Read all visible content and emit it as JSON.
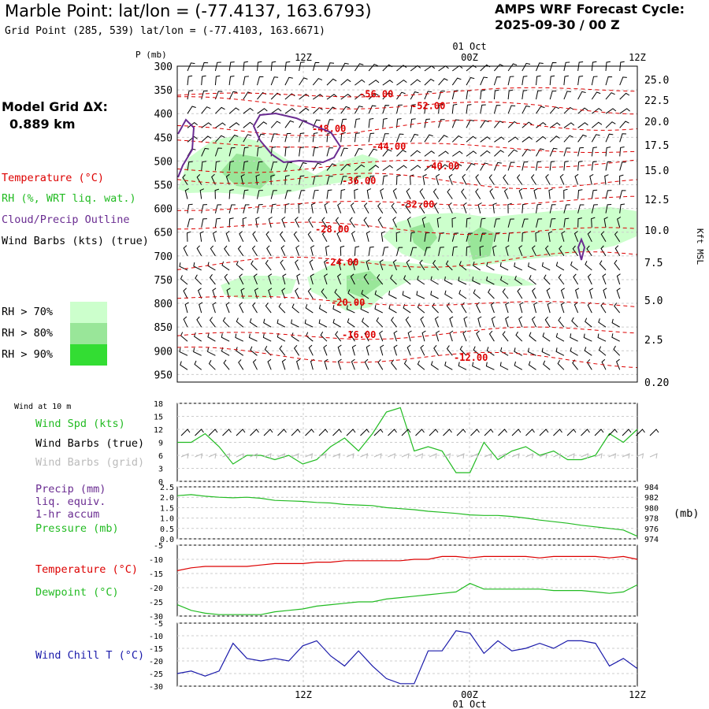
{
  "header": {
    "title": "Marble Point:  lat/lon = (-77.4137, 163.6793)",
    "subtitle": "Grid Point (285, 539) lat/lon = (-77.4103, 163.6671)",
    "cycle_label": "AMPS WRF Forecast Cycle:",
    "cycle_value": "2025-09-30 / 00  Z",
    "grid_label": "Model Grid ΔX:",
    "grid_value": "0.889 km"
  },
  "legend": {
    "temperature": "Temperature (°C)",
    "rh": "RH (%, WRT liq. wat.)",
    "cloud": "Cloud/Precip Outline",
    "wind": "Wind Barbs (kts) (true)",
    "rh70": "RH > 70%",
    "rh80": "RH > 80%",
    "rh90": "RH > 90%"
  },
  "colors": {
    "temperature": "#dd0000",
    "rh70": "#ccffcc",
    "rh80": "#99e699",
    "rh90": "#33dd33",
    "cloud": "#6a2c91",
    "wind_spd": "#22bb22",
    "pressure": "#22bb22",
    "precip": "#6a2c91",
    "dewpoint": "#22bb22",
    "windchill": "#1a1aaa",
    "grid_barbs": "#bbbbbb"
  },
  "chart_data": [
    {
      "type": "heatmap",
      "panel": "time-height cross section",
      "ylabel": "P (mb)",
      "y2label": "Kft MSL",
      "y_ticks": [
        "300",
        "350",
        "400",
        "450",
        "500",
        "550",
        "600",
        "650",
        "700",
        "750",
        "800",
        "850",
        "900",
        "950"
      ],
      "y2_ticks": [
        "25.0",
        "22.5",
        "20.0",
        "17.5",
        "15.0",
        "12.5",
        "10.0",
        "7.5",
        "5.0",
        "2.5",
        "0.20"
      ],
      "x_ticks_top": [
        "12Z",
        "00Z",
        "12Z"
      ],
      "date_label": "01 Oct",
      "isotherm_labels": [
        {
          "value": "-56.00",
          "p": 357
        },
        {
          "value": "-52.00",
          "p": 382
        },
        {
          "value": "-48.00",
          "p": 430
        },
        {
          "value": "-44.00",
          "p": 468
        },
        {
          "value": "-40.00",
          "p": 509
        },
        {
          "value": "-36.00",
          "p": 540
        },
        {
          "value": "-32.00",
          "p": 590
        },
        {
          "value": "-28.00",
          "p": 642
        },
        {
          "value": "-24.00",
          "p": 712
        },
        {
          "value": "-20.00",
          "p": 797
        },
        {
          "value": "-16.00",
          "p": 865
        },
        {
          "value": "-12.00",
          "p": 913
        }
      ]
    },
    {
      "type": "line",
      "panel": "wind",
      "title": "Wind at 10 m",
      "label_speed": "Wind Spd (kts)",
      "label_barbs_true": "Wind Barbs (true)",
      "label_barbs_grid": "Wind Barbs (grid)",
      "ylim": [
        0,
        18
      ],
      "y_ticks": [
        "0",
        "3",
        "6",
        "9",
        "12",
        "15",
        "18"
      ],
      "series": [
        {
          "name": "Wind Spd (kts)",
          "values": [
            9,
            9,
            11,
            8,
            4,
            6,
            6,
            5,
            6,
            4,
            5,
            8,
            10,
            7,
            11,
            16,
            17,
            7,
            8,
            7,
            2,
            2,
            9,
            5,
            7,
            8,
            6,
            7,
            5,
            5,
            6,
            11,
            9,
            12
          ]
        }
      ]
    },
    {
      "type": "line",
      "panel": "precip-pressure",
      "label_precip": "Precip (mm)",
      "label_liq": "liq. equiv.",
      "label_accum": "1-hr accum",
      "label_pressure": "Pressure (mb)",
      "y_ticks": [
        "0.0",
        "0.5",
        "1.0",
        "1.5",
        "2.0",
        "2.5"
      ],
      "y2_ticks": [
        "974",
        "976",
        "978",
        "980",
        "982",
        "984"
      ],
      "y2_unit": "(mb)",
      "series": [
        {
          "name": "Pressure (mb)",
          "values": [
            982.3,
            982.5,
            982.2,
            982.0,
            981.9,
            982.0,
            981.8,
            981.4,
            981.3,
            981.2,
            981.0,
            980.9,
            980.6,
            980.5,
            980.4,
            980.0,
            979.8,
            979.6,
            979.3,
            979.1,
            978.9,
            978.6,
            978.5,
            978.5,
            978.3,
            978.0,
            977.6,
            977.3,
            977.0,
            976.6,
            976.3,
            976.0,
            975.7,
            974.5
          ]
        }
      ]
    },
    {
      "type": "line",
      "panel": "temperature-dewpoint",
      "label_temperature": "Temperature (°C)",
      "label_dewpoint": "Dewpoint (°C)",
      "ylim": [
        -30,
        -5
      ],
      "y_ticks": [
        "-5",
        "-10",
        "-15",
        "-20",
        "-25",
        "-30"
      ],
      "series": [
        {
          "name": "Temperature (°C)",
          "values": [
            -14,
            -13,
            -12.5,
            -12.5,
            -12.5,
            -12.5,
            -12,
            -11.5,
            -11.5,
            -11.5,
            -11,
            -11,
            -10.5,
            -10.5,
            -10.5,
            -10.5,
            -10.5,
            -10,
            -10,
            -9,
            -9,
            -9.5,
            -9,
            -9,
            -9,
            -9,
            -9.5,
            -9,
            -9,
            -9,
            -9,
            -9.5,
            -9,
            -10
          ]
        },
        {
          "name": "Dewpoint (°C)",
          "values": [
            -26,
            -28,
            -29,
            -29.5,
            -29.5,
            -29.5,
            -29.5,
            -28.5,
            -28,
            -27.5,
            -26.5,
            -26,
            -25.5,
            -25,
            -25,
            -24,
            -23.5,
            -23,
            -22.5,
            -22,
            -21.5,
            -18.5,
            -20.5,
            -20.5,
            -20.5,
            -20.5,
            -20.5,
            -21,
            -21,
            -21,
            -21.5,
            -22,
            -21.5,
            -19
          ]
        }
      ]
    },
    {
      "type": "line",
      "panel": "wind-chill",
      "label": "Wind Chill T (°C)",
      "ylim": [
        -30,
        -5
      ],
      "y_ticks": [
        "-5",
        "-10",
        "-15",
        "-20",
        "-25",
        "-30"
      ],
      "x_ticks": [
        "12Z",
        "00Z",
        "12Z"
      ],
      "date_label": "01 Oct",
      "series": [
        {
          "name": "Wind Chill T (°C)",
          "values": [
            -25,
            -24,
            -26,
            -24,
            -13,
            -19,
            -20,
            -19,
            -20,
            -14,
            -12,
            -18,
            -22,
            -16,
            -22,
            -27,
            -29,
            -29,
            -16,
            -16,
            -8,
            -9,
            -17,
            -12,
            -16,
            -15,
            -13,
            -15,
            -12,
            -12,
            -13,
            -22,
            -19,
            -23
          ]
        }
      ]
    }
  ]
}
